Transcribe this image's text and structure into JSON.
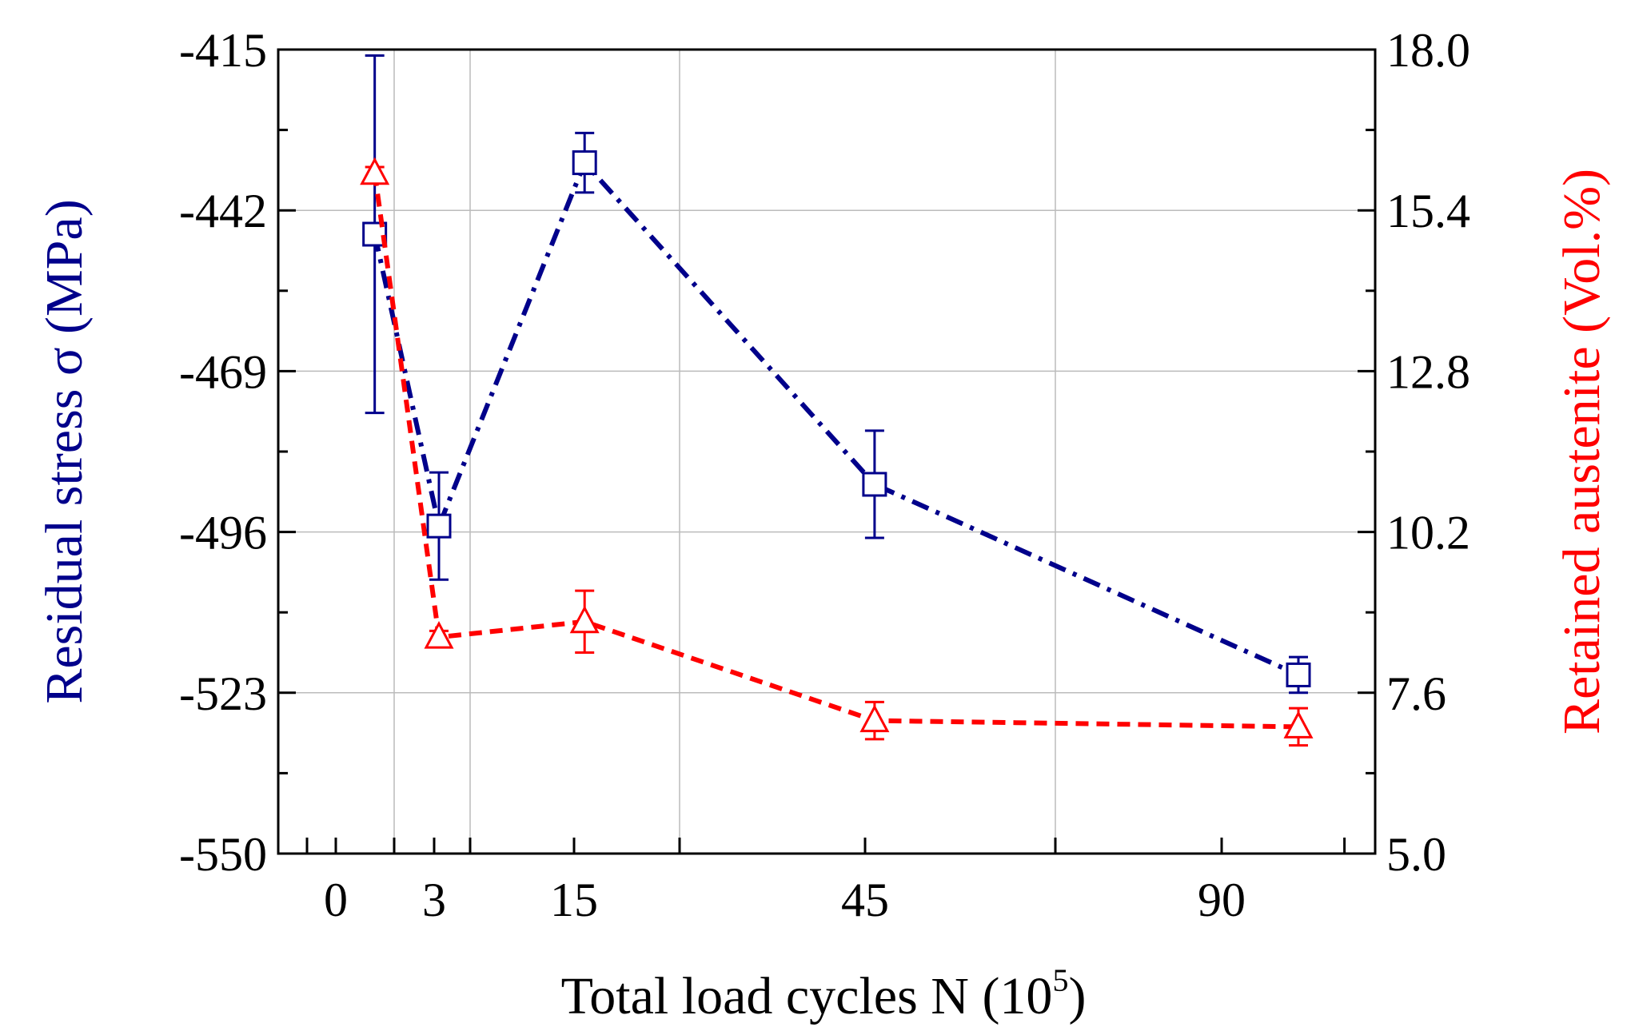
{
  "chart_data": {
    "type": "line",
    "title": "",
    "xlabel": "Total load cycles N (10",
    "xlabel_sup": "5",
    "xlabel_close": ")",
    "ylabel_left": "Residual stress σ (MPa)",
    "ylabel_right": "Retained austenite (Vol.%)",
    "x_ticks": [
      {
        "label": "0",
        "value": 0
      },
      {
        "label": "3",
        "value": 3
      },
      {
        "label": "15",
        "value": 15
      },
      {
        "label": "45",
        "value": 45
      },
      {
        "label": "90",
        "value": 90
      }
    ],
    "y_left_ticks": [
      "-415",
      "-442",
      "-469",
      "-496",
      "-523",
      "-550"
    ],
    "y_left_lim": [
      -550,
      -415
    ],
    "y_right_ticks": [
      "18.0",
      "15.4",
      "12.8",
      "10.2",
      "7.6",
      "5.0"
    ],
    "y_right_lim": [
      5.0,
      18.0
    ],
    "grid": true,
    "series": [
      {
        "name": "Residual stress σ",
        "axis": "left",
        "color": "#00008b",
        "marker": "square",
        "linestyle": "dashdot",
        "x": [
          1,
          3.4,
          16.5,
          46.5,
          95
        ],
        "y": [
          -446,
          -495,
          -434,
          -488,
          -520
        ],
        "err": [
          30,
          9,
          5,
          9,
          3
        ]
      },
      {
        "name": "Retained austenite",
        "axis": "right",
        "color": "#ff0000",
        "marker": "triangle",
        "linestyle": "dashed",
        "x": [
          1,
          3.4,
          16.5,
          46.5,
          95
        ],
        "y": [
          16.0,
          8.5,
          8.75,
          7.15,
          7.05
        ],
        "err": [
          0.1,
          0.1,
          0.5,
          0.3,
          0.3
        ]
      }
    ],
    "colors": {
      "left_axis_title": "#00008b",
      "right_axis_title": "#ff0000",
      "grid": "#bbbbbb"
    }
  }
}
